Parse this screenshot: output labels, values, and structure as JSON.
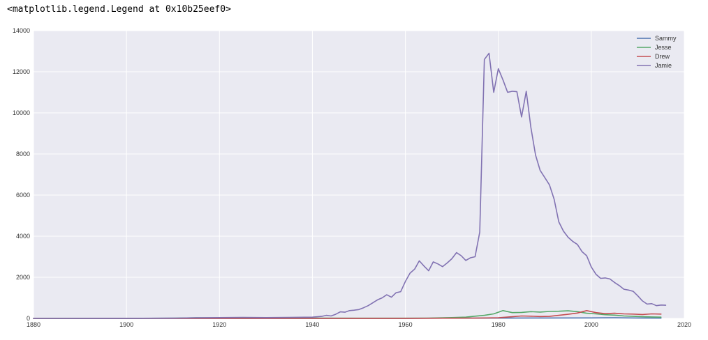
{
  "output_repr": "<matplotlib.legend.Legend at 0x10b25eef0>",
  "chart_data": {
    "type": "line",
    "title": "",
    "xlabel": "",
    "ylabel": "",
    "xlim": [
      1880,
      2020
    ],
    "ylim": [
      0,
      14000
    ],
    "grid": true,
    "legend_position": "top-right",
    "x_ticks": [
      1880,
      1900,
      1920,
      1940,
      1960,
      1980,
      2000,
      2020
    ],
    "y_ticks": [
      0,
      2000,
      4000,
      6000,
      8000,
      10000,
      12000,
      14000
    ],
    "series": [
      {
        "name": "Sammy",
        "color": "#4C72B0",
        "points": [
          [
            1880,
            0
          ],
          [
            1900,
            0
          ],
          [
            1920,
            0
          ],
          [
            1940,
            0
          ],
          [
            1960,
            5
          ],
          [
            1970,
            10
          ],
          [
            1980,
            15
          ],
          [
            1990,
            20
          ],
          [
            2000,
            25
          ],
          [
            2005,
            30
          ],
          [
            2010,
            20
          ],
          [
            2015,
            15
          ]
        ]
      },
      {
        "name": "Jesse",
        "color": "#55A868",
        "points": [
          [
            1880,
            0
          ],
          [
            1900,
            5
          ],
          [
            1910,
            10
          ],
          [
            1915,
            35
          ],
          [
            1920,
            25
          ],
          [
            1925,
            20
          ],
          [
            1930,
            15
          ],
          [
            1940,
            15
          ],
          [
            1950,
            10
          ],
          [
            1960,
            10
          ],
          [
            1965,
            15
          ],
          [
            1970,
            40
          ],
          [
            1973,
            60
          ],
          [
            1975,
            110
          ],
          [
            1977,
            150
          ],
          [
            1979,
            220
          ],
          [
            1981,
            380
          ],
          [
            1983,
            280
          ],
          [
            1985,
            290
          ],
          [
            1987,
            330
          ],
          [
            1989,
            310
          ],
          [
            1991,
            340
          ],
          [
            1993,
            350
          ],
          [
            1995,
            370
          ],
          [
            1997,
            330
          ],
          [
            1999,
            250
          ],
          [
            2001,
            220
          ],
          [
            2003,
            180
          ],
          [
            2005,
            160
          ],
          [
            2007,
            120
          ],
          [
            2010,
            90
          ],
          [
            2013,
            70
          ],
          [
            2015,
            60
          ]
        ]
      },
      {
        "name": "Drew",
        "color": "#C44E52",
        "points": [
          [
            1880,
            0
          ],
          [
            1900,
            0
          ],
          [
            1920,
            0
          ],
          [
            1940,
            0
          ],
          [
            1960,
            5
          ],
          [
            1970,
            10
          ],
          [
            1975,
            15
          ],
          [
            1980,
            30
          ],
          [
            1983,
            80
          ],
          [
            1985,
            120
          ],
          [
            1987,
            110
          ],
          [
            1989,
            90
          ],
          [
            1991,
            100
          ],
          [
            1993,
            150
          ],
          [
            1995,
            200
          ],
          [
            1997,
            260
          ],
          [
            1999,
            380
          ],
          [
            2001,
            280
          ],
          [
            2003,
            230
          ],
          [
            2005,
            250
          ],
          [
            2007,
            220
          ],
          [
            2009,
            210
          ],
          [
            2011,
            190
          ],
          [
            2013,
            220
          ],
          [
            2015,
            210
          ]
        ]
      },
      {
        "name": "Jamie",
        "color": "#8172B2",
        "points": [
          [
            1880,
            0
          ],
          [
            1900,
            5
          ],
          [
            1910,
            15
          ],
          [
            1915,
            30
          ],
          [
            1920,
            40
          ],
          [
            1925,
            50
          ],
          [
            1930,
            40
          ],
          [
            1935,
            50
          ],
          [
            1940,
            60
          ],
          [
            1942,
            100
          ],
          [
            1943,
            150
          ],
          [
            1944,
            120
          ],
          [
            1945,
            200
          ],
          [
            1946,
            320
          ],
          [
            1947,
            300
          ],
          [
            1948,
            380
          ],
          [
            1949,
            400
          ],
          [
            1950,
            430
          ],
          [
            1951,
            520
          ],
          [
            1952,
            620
          ],
          [
            1953,
            760
          ],
          [
            1954,
            900
          ],
          [
            1955,
            1000
          ],
          [
            1956,
            1150
          ],
          [
            1957,
            1030
          ],
          [
            1958,
            1250
          ],
          [
            1959,
            1300
          ],
          [
            1960,
            1800
          ],
          [
            1961,
            2200
          ],
          [
            1962,
            2400
          ],
          [
            1963,
            2800
          ],
          [
            1964,
            2550
          ],
          [
            1965,
            2320
          ],
          [
            1966,
            2750
          ],
          [
            1967,
            2650
          ],
          [
            1968,
            2520
          ],
          [
            1969,
            2700
          ],
          [
            1970,
            2900
          ],
          [
            1971,
            3200
          ],
          [
            1972,
            3050
          ],
          [
            1973,
            2820
          ],
          [
            1974,
            2950
          ],
          [
            1975,
            3000
          ],
          [
            1976,
            4200
          ],
          [
            1977,
            12600
          ],
          [
            1978,
            12900
          ],
          [
            1979,
            11000
          ],
          [
            1980,
            12150
          ],
          [
            1981,
            11600
          ],
          [
            1982,
            11000
          ],
          [
            1983,
            11050
          ],
          [
            1984,
            11030
          ],
          [
            1985,
            9800
          ],
          [
            1986,
            11050
          ],
          [
            1987,
            9300
          ],
          [
            1988,
            7950
          ],
          [
            1989,
            7200
          ],
          [
            1990,
            6850
          ],
          [
            1991,
            6500
          ],
          [
            1992,
            5800
          ],
          [
            1993,
            4700
          ],
          [
            1994,
            4250
          ],
          [
            1995,
            3950
          ],
          [
            1996,
            3750
          ],
          [
            1997,
            3600
          ],
          [
            1998,
            3250
          ],
          [
            1999,
            3050
          ],
          [
            2000,
            2500
          ],
          [
            2001,
            2150
          ],
          [
            2002,
            1950
          ],
          [
            2003,
            1970
          ],
          [
            2004,
            1920
          ],
          [
            2005,
            1750
          ],
          [
            2006,
            1600
          ],
          [
            2007,
            1420
          ],
          [
            2008,
            1380
          ],
          [
            2009,
            1320
          ],
          [
            2010,
            1100
          ],
          [
            2011,
            850
          ],
          [
            2012,
            700
          ],
          [
            2013,
            720
          ],
          [
            2014,
            620
          ],
          [
            2015,
            650
          ],
          [
            2016,
            640
          ]
        ]
      }
    ]
  }
}
